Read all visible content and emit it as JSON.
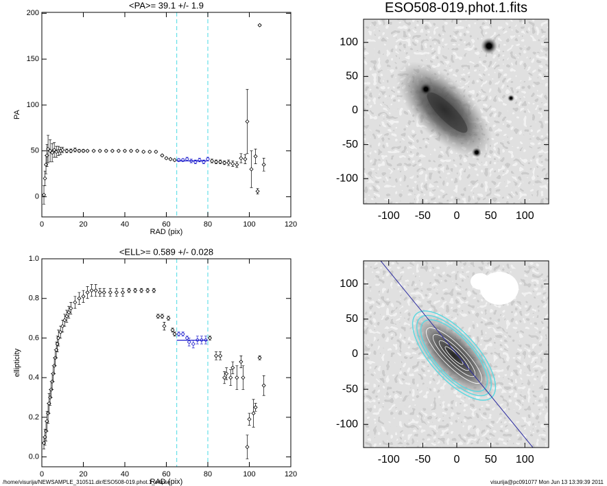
{
  "chart_data": [
    {
      "type": "errorscatter",
      "title": "<PA>=  39.1 +/-   1.9",
      "x_label": "RAD (pix)",
      "y_label": "PA",
      "xlim": [
        0,
        120
      ],
      "ylim": [
        -22,
        201
      ],
      "xticks": [
        0,
        20,
        40,
        60,
        80,
        100,
        120
      ],
      "yticks": [
        0,
        50,
        100,
        150,
        200
      ],
      "color": "#000000",
      "fit_color": "#1a1acc",
      "vline_color": "#66e0e8",
      "vlines": [
        65,
        80
      ],
      "fit_value": 39.1,
      "x": [
        1,
        1.5,
        2,
        2.5,
        3,
        4,
        5,
        6,
        7,
        8,
        9,
        10,
        12,
        14,
        16,
        18,
        20,
        22,
        25,
        28,
        31,
        34,
        37,
        40,
        43,
        46,
        49,
        52,
        55,
        58,
        60,
        62,
        64,
        66,
        68,
        70,
        72,
        74,
        76,
        78,
        80,
        82,
        84,
        86,
        88,
        90,
        92,
        94,
        96,
        98,
        99,
        101,
        103,
        104,
        105,
        107
      ],
      "values": [
        2,
        20,
        35,
        45,
        52,
        50,
        48,
        51,
        49,
        50,
        50,
        51,
        50,
        50,
        51,
        50,
        50,
        50,
        50,
        50,
        50,
        50,
        50,
        50,
        50,
        50,
        49,
        49,
        49,
        45,
        42,
        41,
        40,
        40,
        40,
        41,
        39,
        38,
        40,
        38,
        41,
        39,
        38,
        38,
        37,
        37,
        36,
        35,
        42,
        41,
        82,
        30,
        44,
        6,
        187,
        35
      ],
      "errors": [
        10,
        8,
        10,
        12,
        15,
        12,
        10,
        8,
        6,
        5,
        4,
        3,
        2,
        2,
        2,
        1.5,
        1.5,
        1,
        1,
        1,
        1,
        1,
        1,
        1,
        1,
        1,
        1,
        1,
        1,
        1,
        1,
        1,
        1,
        1.5,
        1.5,
        2,
        2,
        2,
        2,
        2,
        2,
        2,
        2,
        2,
        2,
        3,
        3,
        3,
        5,
        5,
        35,
        20,
        8,
        3,
        1,
        7
      ]
    },
    {
      "type": "image",
      "title": "ESO508-019.phot.1.fits",
      "xlim": [
        -137,
        135
      ],
      "ylim": [
        -137,
        134
      ],
      "xticks": [
        -100,
        -50,
        0,
        50,
        100
      ],
      "yticks": [
        -100,
        -50,
        0,
        50,
        100
      ]
    },
    {
      "type": "errorscatter",
      "title": "<ELL>= 0.589 +/-  0.028",
      "x_label": "RAD (pix)",
      "y_label": "ellipticity",
      "xlim": [
        0,
        120
      ],
      "ylim": [
        -0.05,
        1.0
      ],
      "xticks": [
        0,
        20,
        40,
        60,
        80,
        100,
        120
      ],
      "yticks": [
        {
          "value": 0,
          "label": "0.0"
        },
        0.2,
        0.4,
        0.6,
        0.8,
        {
          "value": 1,
          "label": "1.0"
        }
      ],
      "color": "#000000",
      "fit_color": "#1a1acc",
      "vline_color": "#66e0e8",
      "vlines": [
        65,
        80
      ],
      "fit_value": 0.589,
      "x": [
        1,
        1.5,
        2,
        2.5,
        3,
        3.5,
        4,
        4.5,
        5,
        5.5,
        6,
        6.5,
        7,
        7.5,
        8,
        9,
        10,
        11,
        12,
        13,
        14,
        16,
        18,
        20,
        22,
        24,
        26,
        28,
        30,
        33,
        36,
        39,
        42,
        45,
        48,
        51,
        54,
        56,
        58,
        59,
        61,
        63,
        64,
        66,
        68,
        70,
        71,
        73,
        75,
        77,
        79,
        81,
        84,
        86,
        88,
        89,
        91,
        92,
        94,
        96,
        97,
        99,
        100,
        102,
        103,
        105,
        107
      ],
      "values": [
        0.07,
        0.1,
        0.13,
        0.18,
        0.22,
        0.27,
        0.3,
        0.34,
        0.38,
        0.42,
        0.46,
        0.5,
        0.54,
        0.57,
        0.6,
        0.63,
        0.66,
        0.69,
        0.71,
        0.73,
        0.75,
        0.78,
        0.8,
        0.81,
        0.83,
        0.84,
        0.84,
        0.83,
        0.83,
        0.83,
        0.83,
        0.83,
        0.84,
        0.84,
        0.84,
        0.84,
        0.84,
        0.71,
        0.71,
        0.66,
        0.7,
        0.64,
        0.62,
        0.62,
        0.62,
        0.6,
        0.58,
        0.57,
        0.59,
        0.59,
        0.59,
        0.6,
        0.51,
        0.51,
        0.4,
        0.42,
        0.4,
        0.45,
        0.4,
        0.48,
        0.4,
        0.05,
        0.19,
        0.22,
        0.25,
        0.5,
        0.36
      ],
      "errors": [
        0.03,
        0.04,
        0.05,
        0.05,
        0.05,
        0.05,
        0.04,
        0.04,
        0.04,
        0.04,
        0.04,
        0.04,
        0.04,
        0.04,
        0.04,
        0.03,
        0.03,
        0.03,
        0.03,
        0.03,
        0.03,
        0.03,
        0.03,
        0.03,
        0.03,
        0.03,
        0.03,
        0.02,
        0.02,
        0.02,
        0.02,
        0.02,
        0.01,
        0.01,
        0.01,
        0.01,
        0.01,
        0.01,
        0.01,
        0.02,
        0.01,
        0.01,
        0.01,
        0.01,
        0.01,
        0.01,
        0.02,
        0.02,
        0.02,
        0.02,
        0.02,
        0.01,
        0.02,
        0.02,
        0.03,
        0.03,
        0.04,
        0.03,
        0.06,
        0.03,
        0.06,
        0.06,
        0.03,
        0.07,
        0.02,
        0.01,
        0.05
      ]
    },
    {
      "type": "image",
      "xlim": [
        -137,
        135
      ],
      "ylim": [
        -133,
        133
      ],
      "xticks": [
        -100,
        -50,
        0,
        50,
        100
      ],
      "yticks": [
        -100,
        -50,
        0,
        50,
        100
      ]
    }
  ],
  "footer": {
    "left": "/home/visurija/NEWSAMPLE_310511.dir/ESO508-019.phot.1_ellipse",
    "right": "visurija@pc091077  Mon Jun 13 13:39:39 2011"
  }
}
